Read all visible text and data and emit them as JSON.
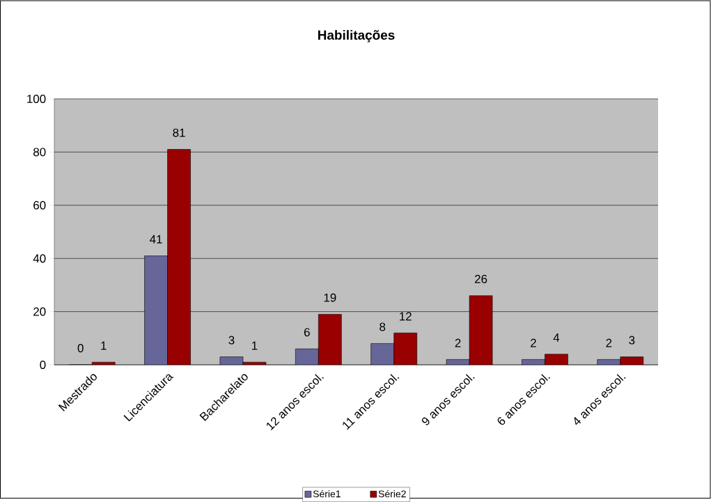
{
  "chart_data": {
    "type": "bar",
    "title": "**Habilitações**",
    "categories": [
      "Mestrado",
      "Licenciatura",
      "Bacharelato",
      "12 anos escol.",
      "11 anos escol.",
      "9 anos escol.",
      "6 anos escol.",
      "4 anos escol."
    ],
    "series": [
      {
        "name": "Série1",
        "color": "#666699",
        "values": [
          0,
          41,
          3,
          6,
          8,
          2,
          2,
          2
        ]
      },
      {
        "name": "Série2",
        "color": "#990000",
        "values": [
          1,
          81,
          1,
          19,
          12,
          26,
          4,
          3
        ]
      }
    ],
    "ylim": [
      0,
      100
    ],
    "yticks": [
      0,
      20,
      40,
      60,
      80,
      100
    ],
    "grid": "y",
    "legend": "bottom",
    "data_labels": true
  }
}
